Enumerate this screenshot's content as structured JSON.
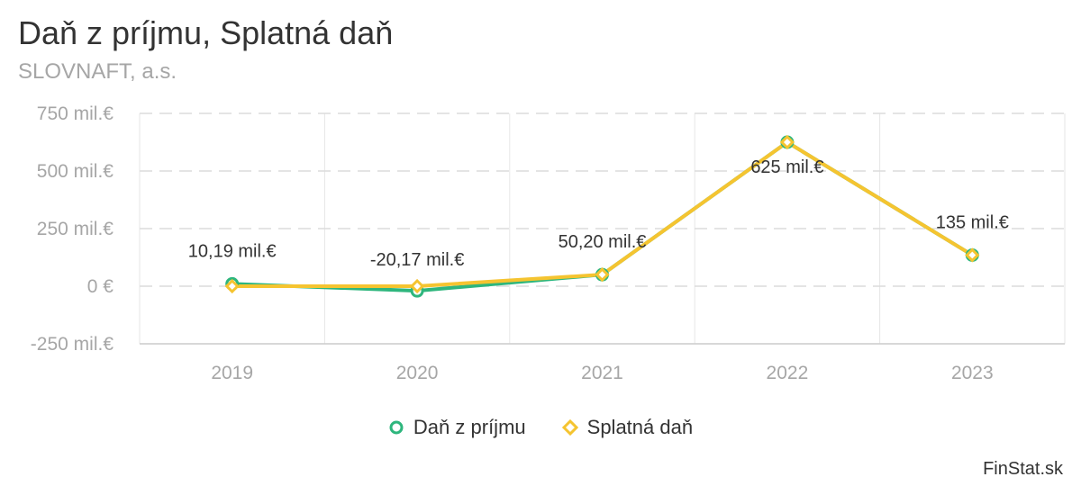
{
  "chart_data": {
    "type": "line",
    "title": "Daň z príjmu, Splatná daň",
    "subtitle": "SLOVNAFT, a.s.",
    "categories": [
      "2019",
      "2020",
      "2021",
      "2022",
      "2023"
    ],
    "series": [
      {
        "name": "Daň z príjmu",
        "values": [
          10.19,
          -20.17,
          50.2,
          625,
          135
        ],
        "color": "#2eb67d"
      },
      {
        "name": "Splatná daň",
        "values": [
          0,
          0,
          50.2,
          625,
          135
        ],
        "color": "#f5c430"
      }
    ],
    "data_labels": [
      "10,19 mil.€",
      "-20,17 mil.€",
      "50,20 mil.€",
      "625 mil.€",
      "135 mil.€"
    ],
    "y_ticks": [
      {
        "value": 750,
        "label": "750 mil.€"
      },
      {
        "value": 500,
        "label": "500 mil.€"
      },
      {
        "value": 250,
        "label": "250 mil.€"
      },
      {
        "value": 0,
        "label": "0 €"
      },
      {
        "value": -250,
        "label": "-250 mil.€"
      }
    ],
    "ylim": [
      -250,
      750
    ],
    "grid": true,
    "legend_position": "bottom"
  },
  "credit": "FinStat.sk"
}
